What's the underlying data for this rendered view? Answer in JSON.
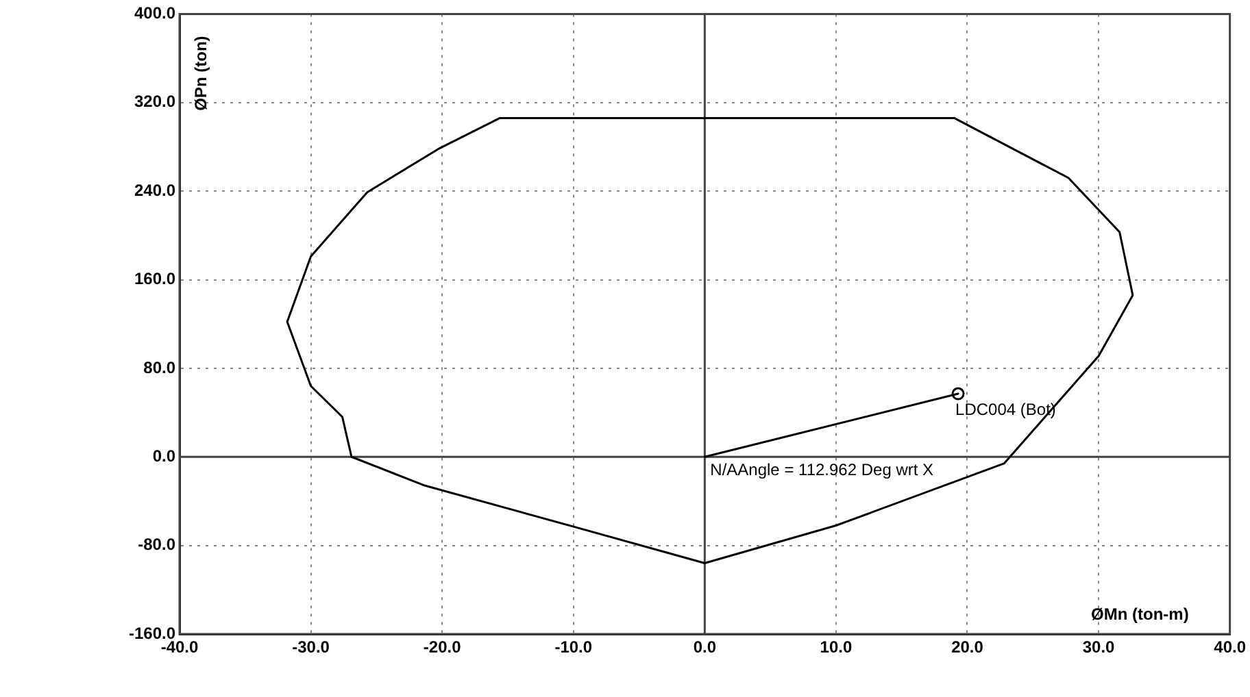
{
  "chart_data": {
    "type": "line",
    "xlabel": "ØMn (ton-m)",
    "ylabel": "ØPn (ton)",
    "xlim": [
      -40,
      40
    ],
    "xticks": [
      {
        "value": -40,
        "label": "-40.0"
      },
      {
        "value": -30,
        "label": "-30.0"
      },
      {
        "value": -20,
        "label": "-20.0"
      },
      {
        "value": -10,
        "label": "-10.0"
      },
      {
        "value": 0,
        "label": "0.0"
      },
      {
        "value": 10,
        "label": "10.0"
      },
      {
        "value": 20,
        "label": "20.0"
      },
      {
        "value": 30,
        "label": "30.0"
      },
      {
        "value": 40,
        "label": "40.0"
      }
    ],
    "ylim": [
      -160,
      400
    ],
    "yticks": [
      {
        "value": -160,
        "label": "-160.0"
      },
      {
        "value": -80,
        "label": "-80.0"
      },
      {
        "value": 0,
        "label": "0.0"
      },
      {
        "value": 80,
        "label": "80.0"
      },
      {
        "value": 160,
        "label": "160.0"
      },
      {
        "value": 240,
        "label": "240.0"
      },
      {
        "value": 320,
        "label": "320.0"
      },
      {
        "value": 400,
        "label": "400.0"
      }
    ],
    "grid": true,
    "legend": false,
    "series": [
      {
        "type": "line",
        "color": "#000000",
        "marker": "none",
        "x": [
          0,
          -10,
          -21.3,
          -26.9,
          -27.6,
          -30,
          -31.8,
          -30,
          -25.7,
          -20.3,
          -15.6,
          19
        ],
        "values": [
          -96,
          -63,
          -26,
          0,
          36,
          64,
          122,
          181,
          239,
          278,
          306,
          306
        ]
      },
      {
        "type": "line",
        "color": "#000000",
        "marker": "none",
        "x": [
          19,
          27.7,
          31.6,
          32.6,
          30,
          22.8,
          10,
          0
        ],
        "values": [
          306,
          252,
          203,
          146,
          91,
          -6,
          -62,
          -96
        ]
      },
      {
        "type": "line",
        "color": "#000000",
        "marker": "none",
        "x": [
          0,
          19.3
        ],
        "values": [
          0,
          57
        ]
      },
      {
        "type": "scatter",
        "color": "#000000",
        "marker": "circle",
        "x": [
          19.3
        ],
        "values": [
          57
        ]
      }
    ],
    "annotations": [
      "N/AAngle = 112.962 Deg wrt X",
      {
        "text": "LDC004 (Bot)",
        "x": 19.3,
        "y": 57
      }
    ]
  }
}
